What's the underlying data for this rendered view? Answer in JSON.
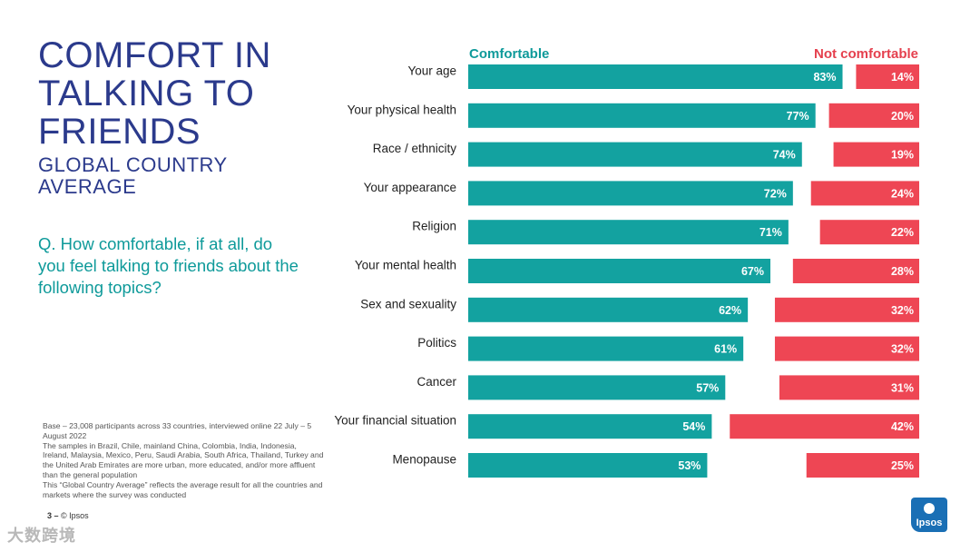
{
  "title_lines": [
    "COMFORT IN",
    "TALKING TO",
    "FRIENDS"
  ],
  "subtitle_lines": [
    "GLOBAL COUNTRY",
    "AVERAGE"
  ],
  "question": "Q. How comfortable, if at all, do you feel talking to friends about the following topics?",
  "notes": [
    "Base – 23,008 participants across 33 countries, interviewed online 22 July – 5 August 2022",
    "The samples in Brazil, Chile, mainland China, Colombia, India, Indonesia, Ireland, Malaysia, Mexico, Peru, Saudi Arabia, South Africa, Thailand, Turkey and the United Arab Emirates are more urban, more educated, and/or more affluent than the general population",
    "This “Global Country Average” reflects the average result for all the countries and markets where the survey was conducted"
  ],
  "footer": {
    "page": "3 –",
    "copyright": "© Ipsos"
  },
  "logo_text": "Ipsos",
  "watermark": "大数跨境",
  "colors": {
    "comfortable": "#13a2a0",
    "not_comfortable": "#ee4654",
    "title": "#2b3a8c",
    "teal_text": "#0e9a9a"
  },
  "chart_data": {
    "type": "bar",
    "orientation": "horizontal",
    "categories": [
      "Your age",
      "Your physical health",
      "Race / ethnicity",
      "Your appearance",
      "Religion",
      "Your mental health",
      "Sex and sexuality",
      "Politics",
      "Cancer",
      "Your financial situation",
      "Menopause"
    ],
    "series": [
      {
        "name": "Comfortable",
        "values": [
          83,
          77,
          74,
          72,
          71,
          67,
          62,
          61,
          57,
          54,
          53
        ]
      },
      {
        "name": "Not comfortable",
        "values": [
          14,
          20,
          19,
          24,
          22,
          28,
          32,
          32,
          31,
          42,
          25
        ]
      }
    ],
    "value_suffix": "%",
    "legend": [
      "Comfortable",
      "Not comfortable"
    ],
    "legend_position": "top"
  }
}
